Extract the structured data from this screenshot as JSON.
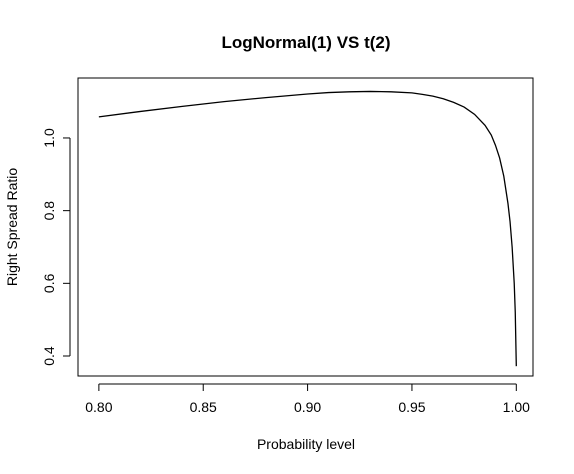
{
  "chart_data": {
    "type": "line",
    "title": "LogNormal(1) VS t(2)",
    "xlabel": "Probability level",
    "ylabel": "Right Spread Ratio",
    "xlim": [
      0.79,
      1.008
    ],
    "ylim": [
      0.345,
      1.165
    ],
    "xticks": [
      0.8,
      0.85,
      0.9,
      0.95,
      1.0
    ],
    "xtick_labels": [
      "0.80",
      "0.85",
      "0.90",
      "0.95",
      "1.00"
    ],
    "yticks": [
      0.4,
      0.6,
      0.8,
      1.0
    ],
    "ytick_labels": [
      "0.4",
      "0.6",
      "0.8",
      "1.0"
    ],
    "grid": false,
    "legend": "none",
    "line_color": "#000000",
    "series": [
      {
        "x": [
          0.8,
          0.82,
          0.84,
          0.86,
          0.88,
          0.9,
          0.91,
          0.92,
          0.93,
          0.94,
          0.95,
          0.955,
          0.96,
          0.965,
          0.97,
          0.975,
          0.98,
          0.985,
          0.988,
          0.99,
          0.992,
          0.994,
          0.996,
          0.997,
          0.998,
          0.999,
          0.9995,
          1.0
        ],
        "y": [
          1.058,
          1.073,
          1.087,
          1.1,
          1.111,
          1.121,
          1.125,
          1.127,
          1.128,
          1.127,
          1.124,
          1.12,
          1.115,
          1.108,
          1.098,
          1.085,
          1.065,
          1.035,
          1.008,
          0.98,
          0.945,
          0.895,
          0.82,
          0.77,
          0.7,
          0.6,
          0.52,
          0.372
        ]
      }
    ]
  }
}
